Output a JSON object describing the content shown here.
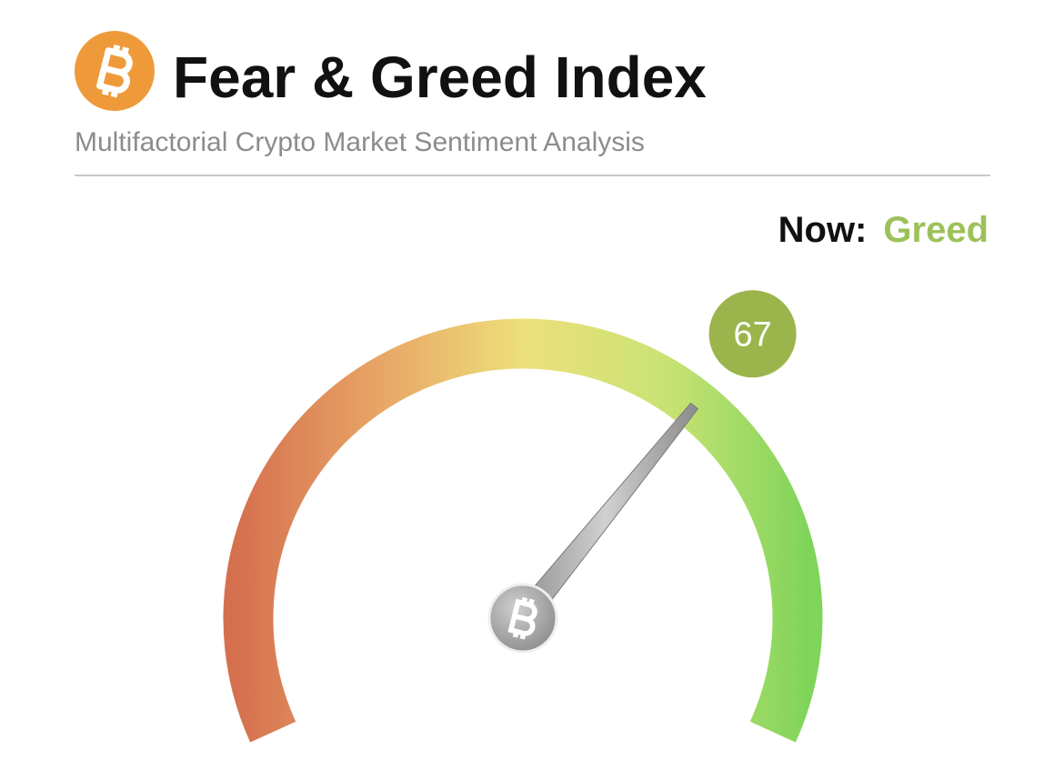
{
  "chart_data": {
    "type": "gauge",
    "title": "Fear & Greed Index",
    "subtitle": "Multifactorial Crypto Market Sentiment Analysis",
    "status_label": "Now:",
    "status": "Greed",
    "value": 67,
    "ylim": [
      0,
      100
    ],
    "color": "#9bb54c"
  }
}
